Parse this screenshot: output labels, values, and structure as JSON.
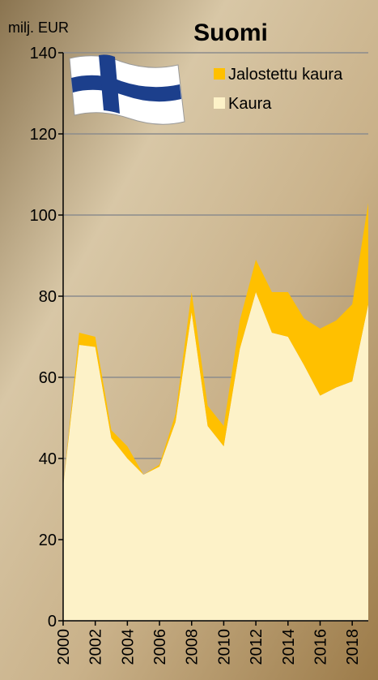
{
  "chart_data": {
    "type": "stacked_area",
    "title": "Suomi",
    "y_label": "milj. EUR",
    "x": [
      2000,
      2001,
      2002,
      2003,
      2004,
      2005,
      2006,
      2007,
      2008,
      2009,
      2010,
      2011,
      2012,
      2013,
      2014,
      2015,
      2016,
      2017,
      2018,
      2019
    ],
    "series": [
      {
        "name": "Kaura",
        "color": "#fdf2c8",
        "values": [
          33,
          68,
          67.5,
          45,
          40,
          36,
          38,
          49,
          76,
          48,
          43,
          67,
          81,
          71,
          70,
          63,
          55.5,
          57.5,
          59,
          78
        ]
      },
      {
        "name": "Jalostettu kaura",
        "color": "#ffc000",
        "values": [
          0,
          3,
          2.5,
          2,
          3,
          0,
          0.5,
          2,
          5,
          5,
          5,
          7,
          8,
          10,
          11,
          11.5,
          16.5,
          16.5,
          19,
          25
        ]
      }
    ],
    "xlim": [
      2000,
      2019
    ],
    "xticks": [
      2000,
      2002,
      2004,
      2006,
      2008,
      2010,
      2012,
      2014,
      2016,
      2018
    ],
    "ylim": [
      0,
      140
    ],
    "yticks": [
      0,
      20,
      40,
      60,
      80,
      100,
      120,
      140
    ],
    "grid": true
  }
}
